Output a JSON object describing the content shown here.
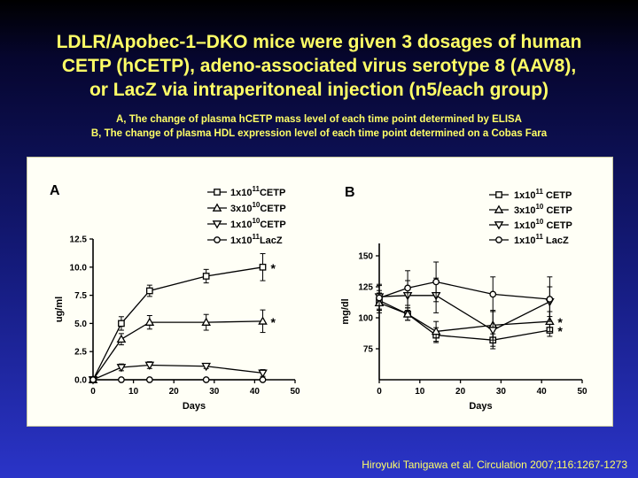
{
  "title": {
    "line1": "LDLR/Apobec-1–DKO mice were given 3 dosages of human",
    "line2": "CETP (hCETP), adeno-associated virus serotype 8 (AAV8),",
    "line3": "or LacZ via intraperitoneal injection (n5/each group)"
  },
  "subtitle": {
    "line1": "A, The change of plasma hCETP mass level of each time point determined by ELISA",
    "line2": "B, The change of plasma HDL expression level of each time point determined on a Cobas Fara"
  },
  "citation": "Hiroyuki Tanigawa et al. Circulation 2007;116:1267-1273",
  "colors": {
    "background_top": "#000000",
    "background_bottom": "#2a34c8",
    "text": "#ffff66",
    "panel": "#fffff6"
  },
  "chart_data": [
    {
      "type": "line",
      "panel_label": "A",
      "xlabel": "Days",
      "ylabel": "ug/ml",
      "xlim": [
        0,
        50
      ],
      "ylim": [
        0,
        12.5
      ],
      "xticks": [
        "0",
        "10",
        "20",
        "30",
        "40",
        "50"
      ],
      "yticks": [
        "0.0",
        "2.5",
        "5.0",
        "7.5",
        "10.0",
        "12.5"
      ],
      "legend_position": "top-right",
      "series": [
        {
          "name": "1x10",
          "sup": "11",
          "suffix": "CETP",
          "marker": "square",
          "x": [
            0,
            7,
            14,
            28,
            42
          ],
          "y": [
            0,
            5.0,
            7.9,
            9.2,
            10.0
          ],
          "err": [
            0,
            0.6,
            0.5,
            0.6,
            1.2
          ],
          "annotation": "*"
        },
        {
          "name": "3x10",
          "sup": "10",
          "suffix": "CETP",
          "marker": "triangle-up",
          "x": [
            0,
            7,
            14,
            28,
            42
          ],
          "y": [
            0,
            3.6,
            5.1,
            5.1,
            5.2
          ],
          "err": [
            0,
            0.5,
            0.6,
            0.7,
            1.0
          ],
          "annotation": "*"
        },
        {
          "name": "1x10",
          "sup": "10",
          "suffix": "CETP",
          "marker": "triangle-down",
          "x": [
            0,
            7,
            14,
            28,
            42
          ],
          "y": [
            0,
            1.1,
            1.3,
            1.2,
            0.6
          ],
          "err": [
            0,
            0.3,
            0.3,
            0.2,
            0.3
          ],
          "annotation": ""
        },
        {
          "name": "1x10",
          "sup": "11",
          "suffix": "LacZ",
          "marker": "circle",
          "x": [
            0,
            7,
            14,
            28,
            42
          ],
          "y": [
            0,
            0,
            0,
            0,
            0
          ],
          "err": [
            0,
            0,
            0,
            0,
            0
          ],
          "annotation": ""
        }
      ]
    },
    {
      "type": "line",
      "panel_label": "B",
      "xlabel": "Days",
      "ylabel": "mg/dl",
      "xlim": [
        0,
        50
      ],
      "ylim": [
        50,
        160
      ],
      "xticks": [
        "0",
        "10",
        "20",
        "30",
        "40",
        "50"
      ],
      "yticks": [
        "75",
        "100",
        "125",
        "150"
      ],
      "legend_position": "top-right",
      "series": [
        {
          "name": "1x10",
          "sup": "11",
          "suffix": "CETP",
          "marker": "square",
          "x": [
            0,
            7,
            14,
            28,
            42
          ],
          "y": [
            114,
            103,
            86,
            82,
            90
          ],
          "err": [
            8,
            5,
            6,
            5,
            5
          ],
          "annotation": "*"
        },
        {
          "name": "3x10",
          "sup": "10",
          "suffix": "CETP",
          "marker": "triangle-up",
          "x": [
            0,
            7,
            14,
            28,
            42
          ],
          "y": [
            112,
            103,
            89,
            94,
            97
          ],
          "err": [
            8,
            5,
            8,
            12,
            8
          ],
          "annotation": "*"
        },
        {
          "name": "1x10",
          "sup": "10",
          "suffix": "CETP",
          "marker": "triangle-down",
          "x": [
            0,
            7,
            14,
            28,
            42
          ],
          "y": [
            117,
            118,
            118,
            90,
            113
          ],
          "err": [
            10,
            12,
            14,
            15,
            12
          ],
          "annotation": ""
        },
        {
          "name": "1x10",
          "sup": "11",
          "suffix": "LacZ",
          "marker": "circle",
          "x": [
            0,
            7,
            14,
            28,
            42
          ],
          "y": [
            116,
            124,
            129,
            119,
            115
          ],
          "err": [
            10,
            14,
            16,
            14,
            18
          ],
          "annotation": ""
        }
      ]
    }
  ]
}
